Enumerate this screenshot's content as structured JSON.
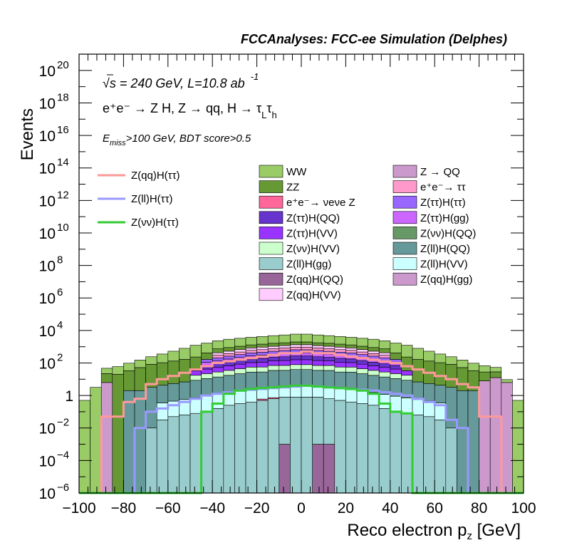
{
  "chart_data": {
    "type": "histogram-stacked",
    "title": "FCCAnalyses: FCC-ee Simulation (Delphes)",
    "xlabel": "Reco electron p_z [GeV]",
    "ylabel": "Events",
    "xlim": [
      -100,
      100
    ],
    "ylim": [
      1e-06,
      1e+21
    ],
    "log_y": true,
    "grid": false,
    "x_ticks": [
      "−100",
      "−80",
      "−60",
      "−40",
      "−20",
      "0",
      "20",
      "40",
      "60",
      "80",
      "100"
    ],
    "y_ticks": [
      {
        "base": "10",
        "exp": "−6"
      },
      {
        "base": "10",
        "exp": "−4"
      },
      {
        "base": "10",
        "exp": "−2"
      },
      {
        "base": "1",
        "exp": ""
      },
      {
        "base": "10",
        "exp": "2"
      },
      {
        "base": "10",
        "exp": "4"
      },
      {
        "base": "10",
        "exp": "6"
      },
      {
        "base": "10",
        "exp": "8"
      },
      {
        "base": "10",
        "exp": "10"
      },
      {
        "base": "10",
        "exp": "12"
      },
      {
        "base": "10",
        "exp": "14"
      },
      {
        "base": "10",
        "exp": "16"
      },
      {
        "base": "10",
        "exp": "18"
      },
      {
        "base": "10",
        "exp": "20"
      }
    ],
    "annotations": {
      "energy": "√s = 240 GeV, L=10.8 ab",
      "energy_sup": "-1",
      "process": "e⁺e⁻ → Z H, Z → qq, H → τ",
      "process_sub1": "L",
      "process_tau": "τ",
      "process_sub2": "h",
      "cut_E": "E",
      "cut_sub": "miss",
      "cut_rest": ">100 GeV, BDT score>0.5"
    },
    "signal_legend": [
      {
        "name": "Z(qq)H(ττ)",
        "color": "#ff9999"
      },
      {
        "name": "Z(ll)H(ττ)",
        "color": "#9999ff"
      },
      {
        "name": "Z(νν)H(ττ)",
        "color": "#33cc33"
      }
    ],
    "background_legend": [
      {
        "name": "WW",
        "color": "#99cc66"
      },
      {
        "name": "Z → QQ",
        "color": "#cc99cc"
      },
      {
        "name": "ZZ",
        "color": "#669933"
      },
      {
        "name": "e⁺e⁻→ ττ",
        "color": "#ff99cc"
      },
      {
        "name": "e⁺e⁻→ νeνe Z",
        "color": "#ff6699"
      },
      {
        "name": "Z(ττ)H(ττ)",
        "color": "#9966ff"
      },
      {
        "name": "Z(ττ)H(QQ)",
        "color": "#6633cc"
      },
      {
        "name": "Z(ττ)H(gg)",
        "color": "#cc66ff"
      },
      {
        "name": "Z(ττ)H(VV)",
        "color": "#9933ff"
      },
      {
        "name": "Z(νν)H(QQ)",
        "color": "#669966"
      },
      {
        "name": "Z(νν)H(VV)",
        "color": "#ccffcc"
      },
      {
        "name": "Z(ll)H(QQ)",
        "color": "#669999"
      },
      {
        "name": "Z(ll)H(gg)",
        "color": "#99cccc"
      },
      {
        "name": "Z(ll)H(VV)",
        "color": "#ccffff"
      },
      {
        "name": "Z(qq)H(QQ)",
        "color": "#996699"
      },
      {
        "name": "Z(qq)H(gg)",
        "color": "#cc99cc"
      },
      {
        "name": "Z(qq)H(VV)",
        "color": "#ffccff"
      }
    ],
    "bin_edges": [
      -100,
      -95,
      -90,
      -85,
      -80,
      -75,
      -70,
      -65,
      -60,
      -55,
      -50,
      -45,
      -40,
      -35,
      -30,
      -25,
      -20,
      -15,
      -10,
      -5,
      0,
      5,
      10,
      15,
      20,
      25,
      30,
      35,
      40,
      45,
      50,
      55,
      60,
      65,
      70,
      75,
      80,
      85,
      90,
      95,
      100
    ],
    "stack_bottom_to_top": [
      {
        "name": "Z(qq)H(QQ)",
        "color": "#996699",
        "log10": [
          -6,
          -6,
          -6,
          -6,
          -6,
          -6,
          -6,
          -6,
          -6,
          -6,
          -6,
          -6,
          -6,
          -6,
          -6,
          -6,
          -6,
          -6,
          -3,
          -6,
          -6,
          -3,
          -3,
          -6,
          -6,
          -6,
          -6,
          -6,
          -6,
          -6,
          -6,
          -6,
          -6,
          -6,
          -6,
          -6,
          -6,
          -6,
          -6,
          -6
        ]
      },
      {
        "name": "Z(ll)H(gg)",
        "color": "#99cccc",
        "log10": [
          -6,
          -6,
          -6,
          -6,
          -6,
          -6,
          -2,
          -1.5,
          -1.3,
          -1.2,
          -1.1,
          -1,
          -0.8,
          -0.6,
          -0.5,
          -0.4,
          -0.3,
          -0.2,
          -0.1,
          -0.1,
          -0.1,
          -0.1,
          -0.2,
          -0.3,
          -0.4,
          -0.5,
          -0.6,
          -0.8,
          -1,
          -1.1,
          -1.2,
          -1.3,
          -1.5,
          -2,
          -6,
          -6,
          -6,
          -6,
          -6,
          -6
        ]
      },
      {
        "name": "Z(νν)H(QQ)",
        "color": "#669966",
        "log10": [
          -6,
          -6,
          -6,
          -6,
          -6,
          -6,
          -6,
          -6,
          -6,
          -6,
          -6,
          -6,
          -6,
          -6,
          -6,
          -6,
          -6,
          -6,
          -6,
          -6,
          -6,
          -6,
          -6,
          -6,
          -6,
          -6,
          -6,
          -6,
          -6,
          -6,
          -6,
          -6,
          -6,
          -6,
          -6,
          -6,
          -6,
          -6,
          -6,
          -6
        ]
      },
      {
        "name": "e⁺e⁻→ νeνe Z",
        "color": "#ff6699",
        "log10": [
          -6,
          -6,
          -6,
          -6,
          -6,
          -6,
          -6,
          -6,
          -6,
          -6,
          -6,
          -6,
          -6,
          -6,
          -6,
          -6,
          -1.0,
          -1.0,
          -6,
          -6,
          -6,
          -6,
          -6,
          -6,
          -6,
          -6,
          -6,
          -6,
          -6,
          -6,
          -6,
          -6,
          -6,
          -6,
          -6,
          -6,
          -6,
          -6,
          -6,
          -6
        ]
      },
      {
        "name": "Z(ll)H(VV)",
        "color": "#ccffff",
        "log10": [
          -6,
          -6,
          -6,
          -6,
          -6,
          -6,
          -6,
          -0.5,
          -0.4,
          -0.3,
          -0.2,
          -0.1,
          0,
          0.1,
          0.2,
          0.3,
          0.35,
          0.4,
          0.45,
          0.5,
          0.5,
          0.45,
          0.4,
          0.35,
          0.3,
          0.2,
          0.1,
          0,
          -0.1,
          -0.2,
          -0.3,
          -0.4,
          -0.5,
          -6,
          -6,
          -6,
          -6,
          -6,
          -6,
          -6
        ]
      },
      {
        "name": "Z(ll)H(QQ)",
        "color": "#669999",
        "log10": [
          -6,
          -6,
          -6,
          -6,
          0.3,
          0.3,
          0.5,
          0.6,
          0.7,
          0.8,
          0.9,
          1.0,
          1.1,
          1.2,
          1.3,
          1.4,
          1.4,
          1.5,
          1.5,
          1.55,
          1.55,
          1.5,
          1.5,
          1.4,
          1.4,
          1.3,
          1.2,
          1.1,
          1.0,
          0.9,
          0.8,
          0.7,
          0.6,
          0.5,
          0.3,
          0.3,
          -6,
          -6,
          -6,
          -6
        ]
      },
      {
        "name": "Z(νν)H(VV)",
        "color": "#ccffcc",
        "log10": [
          -6,
          -6,
          -6,
          -6,
          -6,
          -6,
          -6,
          -6,
          -6,
          -6,
          0.95,
          1.05,
          1.15,
          1.25,
          1.35,
          1.45,
          1.45,
          1.55,
          1.55,
          1.6,
          1.6,
          1.55,
          1.55,
          1.45,
          1.45,
          1.35,
          1.25,
          1.15,
          1.05,
          0.95,
          -6,
          -6,
          -6,
          -6,
          -6,
          -6,
          -6,
          -6,
          -6,
          -6
        ]
      },
      {
        "name": "Z(ττ)H(VV)",
        "color": "#9933ff",
        "log10": [
          -6,
          -6,
          -6,
          -6,
          -6,
          -6,
          -6,
          -6,
          -6,
          -6,
          1.2,
          1.3,
          1.4,
          1.5,
          1.6,
          1.7,
          1.75,
          1.8,
          1.85,
          1.9,
          1.9,
          1.85,
          1.8,
          1.75,
          1.7,
          1.6,
          1.5,
          1.4,
          1.3,
          1.2,
          -6,
          -6,
          -6,
          -6,
          -6,
          -6,
          -6,
          -6,
          -6,
          -6
        ]
      },
      {
        "name": "Z(ττ)H(QQ)",
        "color": "#6633cc",
        "log10": [
          -6,
          -6,
          -6,
          -6,
          -6,
          -6,
          -6,
          -6,
          -6,
          -6,
          -6,
          1.45,
          1.55,
          1.65,
          1.75,
          1.85,
          1.9,
          1.95,
          2.0,
          2.05,
          2.05,
          2.0,
          1.95,
          1.9,
          1.85,
          1.75,
          1.65,
          1.55,
          1.45,
          -6,
          -6,
          -6,
          -6,
          -6,
          -6,
          -6,
          -6,
          -6,
          -6,
          -6
        ]
      },
      {
        "name": "Z(ττ)H(gg)",
        "color": "#cc66ff",
        "log10": [
          -6,
          -6,
          -6,
          -6,
          -6,
          -6,
          -6,
          -6,
          -6,
          -6,
          -6,
          1.6,
          1.7,
          1.8,
          1.9,
          2.0,
          2.05,
          2.1,
          2.15,
          2.2,
          2.2,
          2.15,
          2.1,
          2.05,
          2.0,
          1.9,
          1.8,
          1.7,
          1.6,
          -6,
          -6,
          -6,
          -6,
          -6,
          -6,
          -6,
          -6,
          -6,
          -6,
          -6
        ]
      },
      {
        "name": "Z(ττ)H(ττ)",
        "color": "#9966ff",
        "log10": [
          -6,
          -6,
          -6,
          -6,
          -6,
          -6,
          -6,
          -6,
          -6,
          -6,
          -6,
          1.75,
          1.85,
          1.95,
          2.05,
          2.15,
          2.2,
          2.25,
          2.3,
          2.35,
          2.35,
          2.3,
          2.25,
          2.2,
          2.15,
          2.05,
          1.95,
          1.85,
          1.75,
          -6,
          -6,
          -6,
          -6,
          -6,
          -6,
          -6,
          -6,
          -6,
          -6,
          -6
        ]
      },
      {
        "name": "e⁺e⁻→ ττ",
        "color": "#ff99cc",
        "log10": [
          -6,
          -6,
          -6,
          -6,
          -6,
          -6,
          -6,
          -6,
          -6,
          -6,
          -6,
          -6,
          1.95,
          2.05,
          2.15,
          2.25,
          2.3,
          2.35,
          2.4,
          2.45,
          2.45,
          2.4,
          2.35,
          2.3,
          2.25,
          2.15,
          2.05,
          1.95,
          -6,
          -6,
          -6,
          -6,
          -6,
          -6,
          -6,
          -6,
          -6,
          -6,
          -6,
          -6
        ]
      },
      {
        "name": "Z(qq)H(VV)",
        "color": "#ffccff",
        "log10": [
          -6,
          -6,
          -6,
          -6,
          -6,
          -6,
          -6,
          -6,
          -6,
          -6,
          -6,
          -6,
          2.1,
          2.2,
          2.3,
          2.4,
          2.45,
          2.5,
          2.55,
          2.6,
          2.6,
          2.55,
          2.5,
          2.45,
          2.4,
          2.3,
          2.2,
          2.1,
          -6,
          -6,
          -6,
          -6,
          -6,
          -6,
          -6,
          -6,
          -6,
          -6,
          -6,
          -6
        ]
      },
      {
        "name": "Z → QQ",
        "color": "#cc99cc",
        "log10": [
          -6,
          -6,
          0.8,
          -6,
          -6,
          -6,
          -6,
          -6,
          -6,
          -6,
          -6,
          -6,
          -6,
          -6,
          -6,
          -6,
          -6,
          -6,
          -6,
          -6,
          -6,
          -6,
          -6,
          -6,
          -6,
          -6,
          -6,
          -6,
          -6,
          -6,
          -6,
          -6,
          -6,
          -6,
          -6,
          -6,
          0.9,
          1.1,
          0.8,
          -6
        ]
      },
      {
        "name": "ZZ",
        "color": "#669933",
        "log10": [
          -6,
          -6,
          1.2,
          1.3,
          1.5,
          1.7,
          1.9,
          2.0,
          2.1,
          2.2,
          2.3,
          2.4,
          2.5,
          2.55,
          2.6,
          2.65,
          2.7,
          2.75,
          2.75,
          2.8,
          2.8,
          2.75,
          2.75,
          2.7,
          2.65,
          2.6,
          2.55,
          2.5,
          2.4,
          2.3,
          2.2,
          2.1,
          2.0,
          1.9,
          1.7,
          1.5,
          1.3,
          1.2,
          -6,
          -6
        ]
      },
      {
        "name": "WW",
        "color": "#99cc66",
        "log10": [
          -0.3,
          0.5,
          1.4,
          1.6,
          1.8,
          2.0,
          2.2,
          2.4,
          2.6,
          2.8,
          3.0,
          3.1,
          3.2,
          3.3,
          3.35,
          3.4,
          3.45,
          3.5,
          3.55,
          3.6,
          3.6,
          3.55,
          3.5,
          3.45,
          3.4,
          3.35,
          3.3,
          3.2,
          3.1,
          3.0,
          2.8,
          2.6,
          2.4,
          2.2,
          2.0,
          1.8,
          1.6,
          1.4,
          0.5,
          -0.3
        ]
      }
    ],
    "signal_lines": [
      {
        "name": "Z(qq)H(ττ)",
        "color": "#ff9999",
        "log10": [
          -6,
          -6,
          -1.3,
          -1.3,
          -0.4,
          -0.2,
          0.7,
          1.0,
          1.2,
          1.4,
          1.6,
          1.8,
          2.0,
          2.1,
          2.2,
          2.3,
          2.4,
          2.5,
          2.6,
          2.6,
          2.7,
          2.6,
          2.6,
          2.5,
          2.4,
          2.3,
          2.2,
          2.1,
          2.0,
          1.8,
          1.6,
          1.4,
          1.2,
          1.0,
          0.7,
          0.5,
          -1.3,
          -1.3,
          -6,
          -6
        ]
      },
      {
        "name": "Z(ll)H(ττ)",
        "color": "#9999ff",
        "log10": [
          -6,
          -6,
          -6,
          -6,
          -6,
          -2,
          -1,
          -0.8,
          -0.6,
          -0.4,
          -0.2,
          0,
          0.1,
          0.2,
          0.3,
          0.35,
          0.4,
          0.45,
          0.5,
          0.55,
          0.6,
          0.55,
          0.5,
          0.45,
          0.4,
          0.35,
          0.3,
          0.2,
          0.1,
          0,
          -0.2,
          -0.4,
          -0.6,
          -1.5,
          -2,
          -6,
          -6,
          -6,
          -6,
          -6
        ]
      },
      {
        "name": "Z(νν)H(ττ)",
        "color": "#33cc33",
        "log10": [
          -6,
          -6,
          -6,
          -6,
          -6,
          -6,
          -6,
          -6,
          -6,
          -6,
          -6,
          -1.0,
          -0.5,
          0.1,
          0.3,
          0.4,
          0.45,
          0.5,
          0.55,
          0.6,
          0.6,
          0.55,
          0.5,
          0.45,
          0.4,
          0.3,
          0.1,
          -0.5,
          -1.0,
          -1.1,
          -6,
          -6,
          -6,
          -6,
          -6,
          -6,
          -6,
          -6,
          -6,
          -6
        ]
      }
    ]
  }
}
